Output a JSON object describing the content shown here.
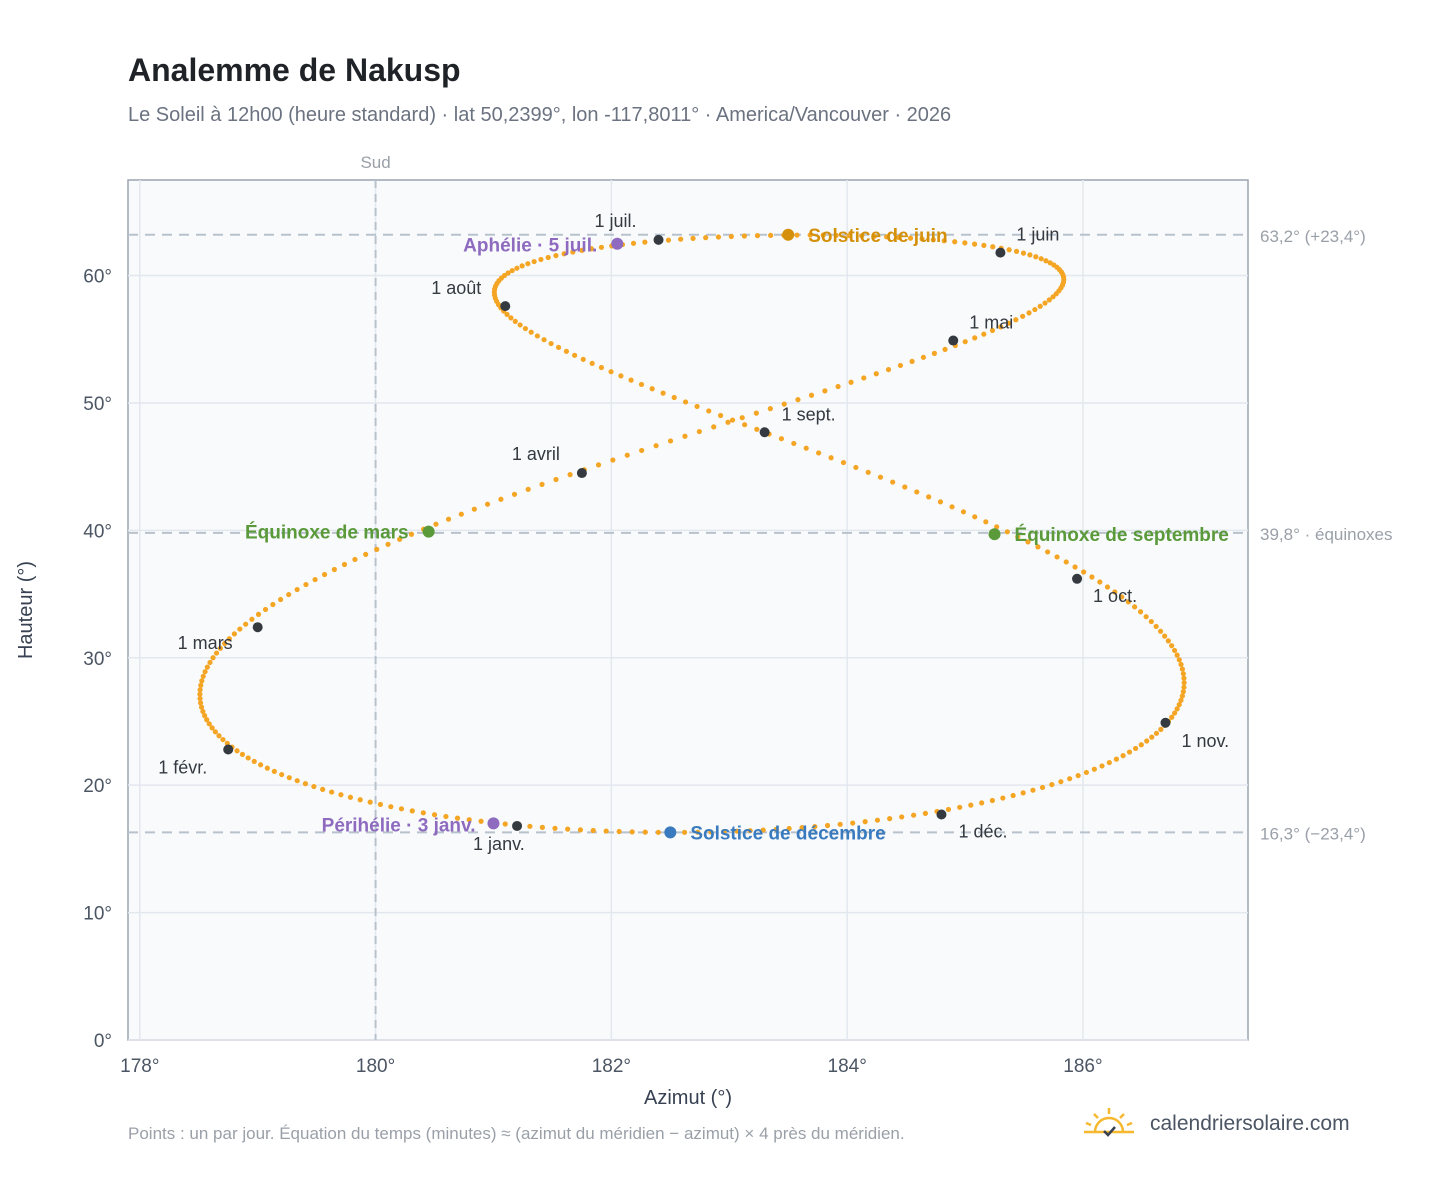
{
  "title": "Analemme de Nakusp",
  "subtitle": "Le Soleil à 12h00 (heure standard) · lat 50,2399°, lon -117,8011° · America/Vancouver · 2026",
  "footnote": "Points : un par jour. Équation du temps (minutes) ≈ (azimut du méridien − azimut) × 4 près du méridien.",
  "brand": {
    "name": "calendriersolaire.com",
    "icon": "sun-logo-icon"
  },
  "colors": {
    "analemma": "#f5a524",
    "month_marker": "#343a40",
    "solstice_june": "#d4900a",
    "solstice_december": "#3a7bbf",
    "equinox": "#5a9a3a",
    "apsis": "#8e6bbf",
    "reference_line": "#b8c2cc",
    "plot_background": "#f8fafc",
    "plot_border": "#9aa4b0"
  },
  "chart_data": {
    "type": "scatter",
    "xlabel": "Azimut (°)",
    "ylabel": "Hauteur (°)",
    "xlim": [
      177.9,
      187.4
    ],
    "ylim": [
      0,
      67.5
    ],
    "x_ticks": [
      "178°",
      "180°",
      "182°",
      "184°",
      "186°"
    ],
    "x_tick_values": [
      178,
      180,
      182,
      184,
      186
    ],
    "y_ticks": [
      "0°",
      "10°",
      "20°",
      "30°",
      "40°",
      "50°",
      "60°"
    ],
    "y_tick_values": [
      0,
      10,
      20,
      30,
      40,
      50,
      60
    ],
    "grid": true,
    "south": {
      "label": "Sud",
      "azimuth": 180
    },
    "reference_lines": [
      {
        "altitude": 63.2,
        "label": "63,2° (+23,4°)"
      },
      {
        "altitude": 39.8,
        "label": "39,8° · équinoxes"
      },
      {
        "altitude": 16.3,
        "label": "16,3° (−23,4°)"
      }
    ],
    "month_markers": [
      {
        "label": "1 janv.",
        "azimuth": 181.2,
        "altitude": 16.8
      },
      {
        "label": "1 févr.",
        "azimuth": 178.75,
        "altitude": 22.8
      },
      {
        "label": "1 mars",
        "azimuth": 179.0,
        "altitude": 32.4
      },
      {
        "label": "1 avril",
        "azimuth": 181.75,
        "altitude": 44.5
      },
      {
        "label": "1 mai",
        "azimuth": 184.9,
        "altitude": 54.9
      },
      {
        "label": "1 juin",
        "azimuth": 185.3,
        "altitude": 61.8
      },
      {
        "label": "1 juil.",
        "azimuth": 182.4,
        "altitude": 62.8
      },
      {
        "label": "1 août",
        "azimuth": 181.1,
        "altitude": 57.6
      },
      {
        "label": "1 sept.",
        "azimuth": 183.3,
        "altitude": 47.7
      },
      {
        "label": "1 oct.",
        "azimuth": 185.95,
        "altitude": 36.2
      },
      {
        "label": "1 nov.",
        "azimuth": 186.7,
        "altitude": 24.9
      },
      {
        "label": "1 déc.",
        "azimuth": 184.8,
        "altitude": 17.7
      }
    ],
    "events": [
      {
        "label": "Solstice de juin",
        "azimuth": 183.5,
        "altitude": 63.2,
        "color": "#d4900a"
      },
      {
        "label": "Solstice de décembre",
        "azimuth": 182.5,
        "altitude": 16.3,
        "color": "#3a7bbf"
      },
      {
        "label": "Équinoxe de mars",
        "azimuth": 180.45,
        "altitude": 39.9,
        "color": "#5a9a3a"
      },
      {
        "label": "Équinoxe de septembre",
        "azimuth": 185.25,
        "altitude": 39.7,
        "color": "#5a9a3a"
      },
      {
        "label": "Aphélie · 5 juil.",
        "azimuth": 182.05,
        "altitude": 62.5,
        "color": "#8e6bbf"
      },
      {
        "label": "Périhélie · 3 janv.",
        "azimuth": 181.0,
        "altitude": 17.0,
        "color": "#8e6bbf"
      }
    ]
  }
}
